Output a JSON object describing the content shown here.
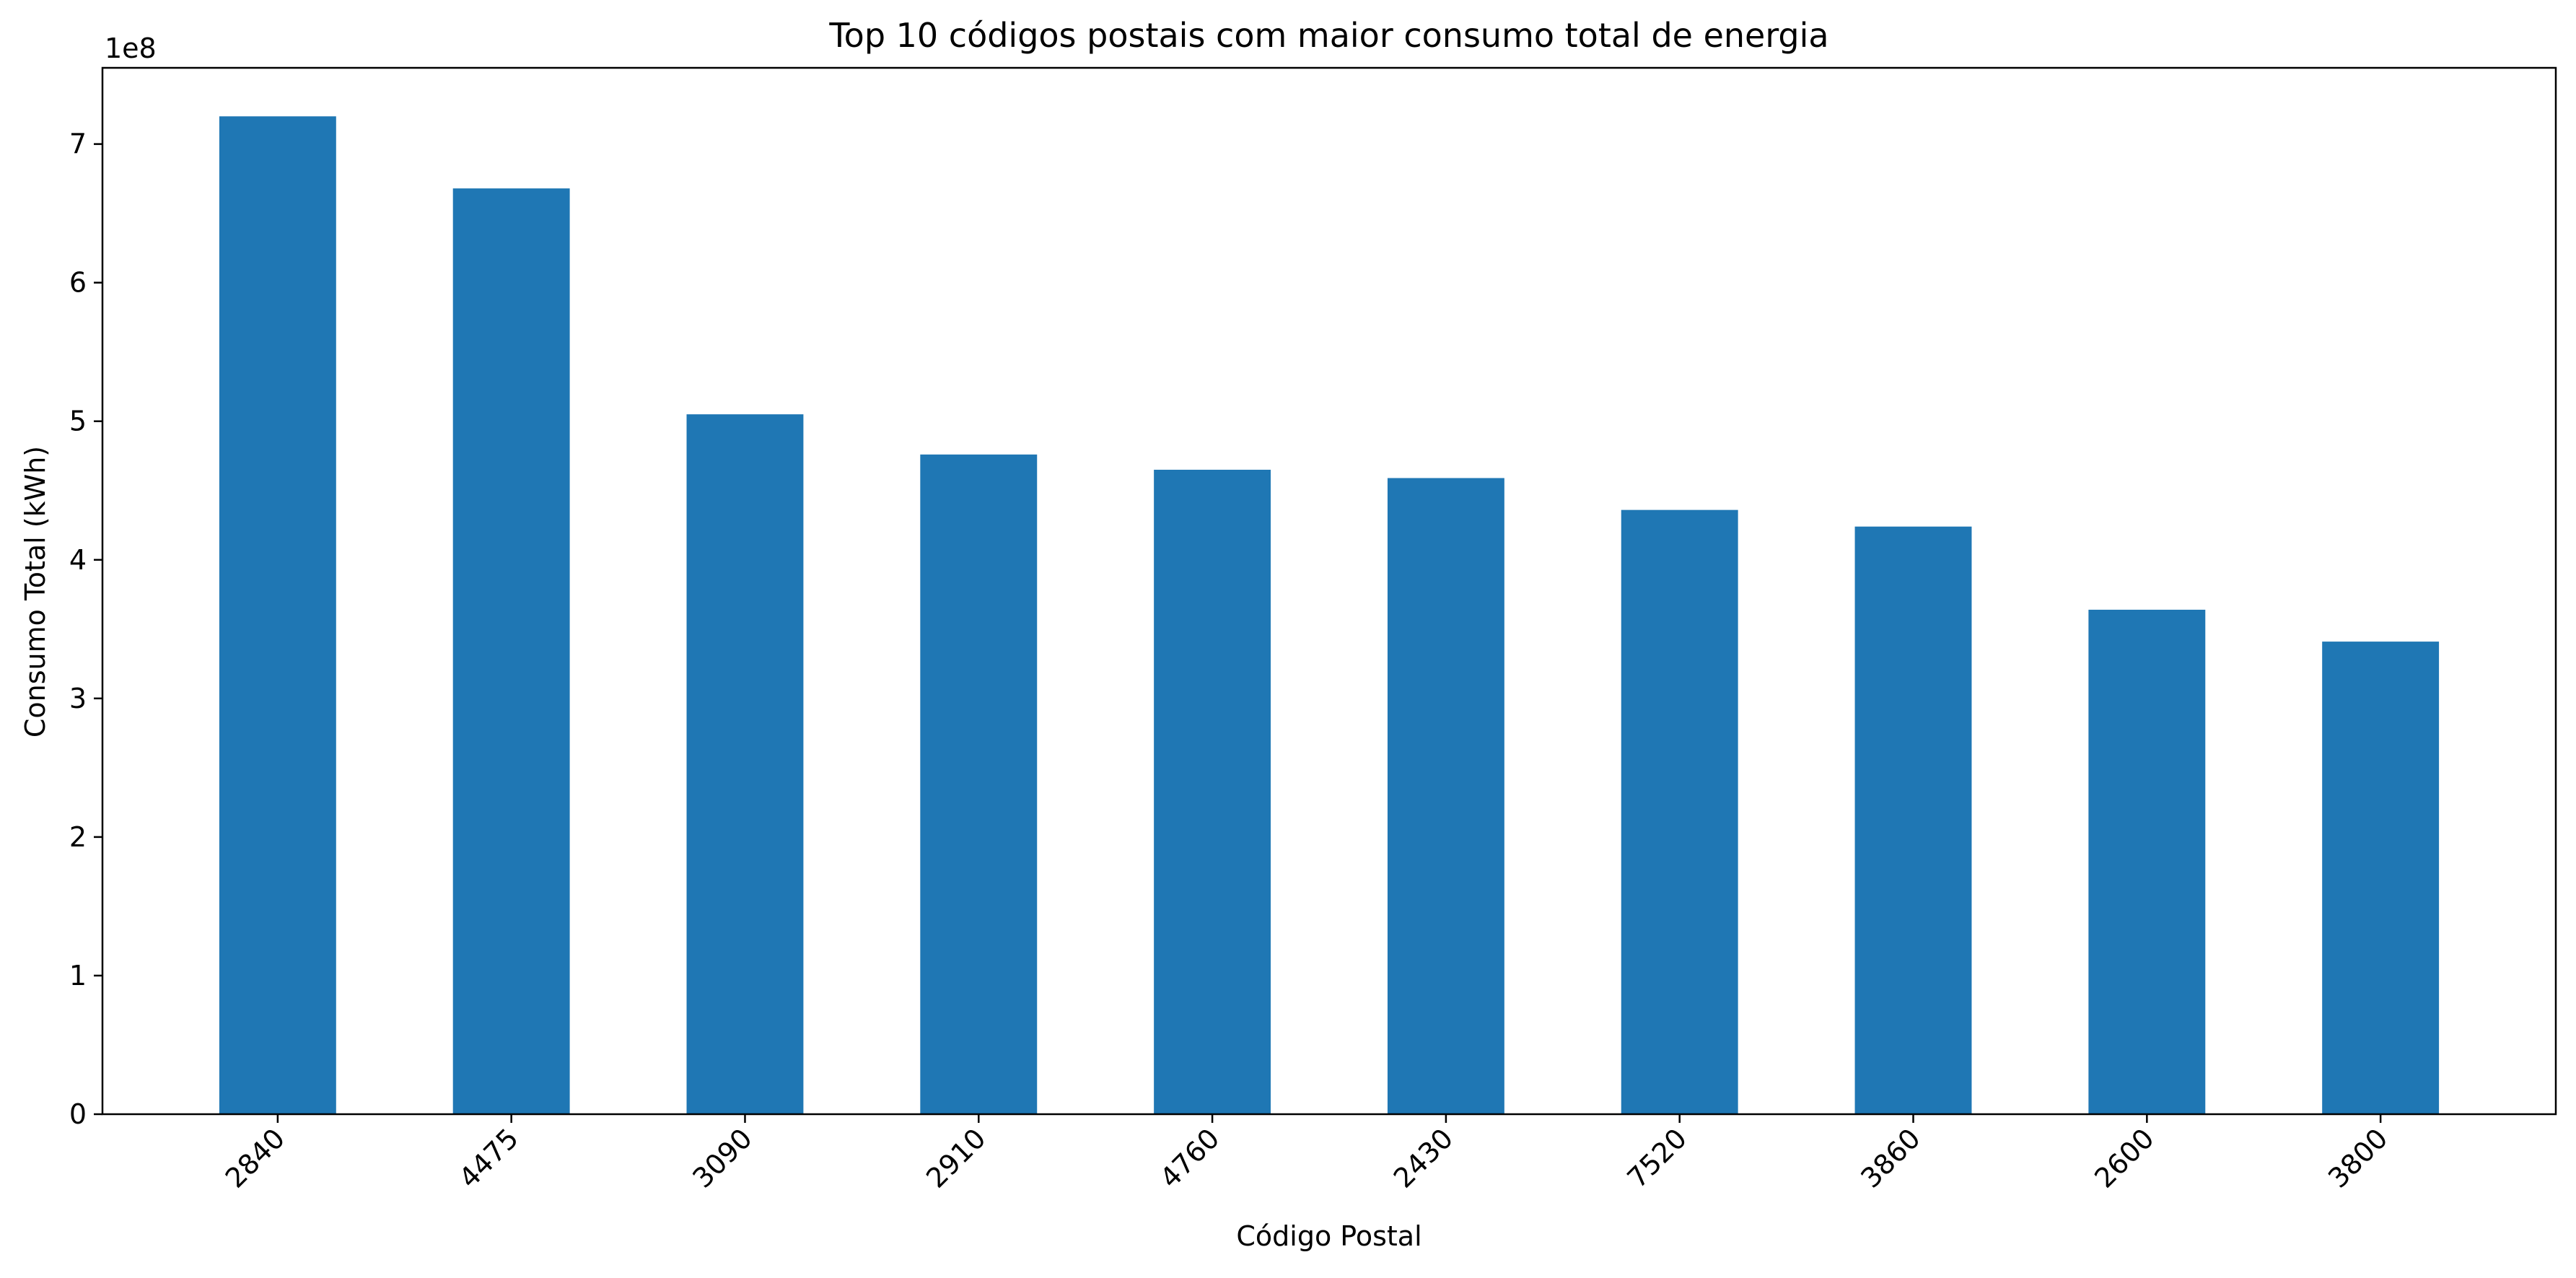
{
  "chart_data": {
    "type": "bar",
    "title": "Top 10 códigos postais com maior consumo total de energia",
    "xlabel": "Código Postal",
    "ylabel": "Consumo Total (kWh)",
    "y_offset_label": "1e8",
    "y_scale": 100000000,
    "ylim": [
      0,
      755000000
    ],
    "yticks": [
      0,
      100000000,
      200000000,
      300000000,
      400000000,
      500000000,
      600000000,
      700000000
    ],
    "ytick_labels": [
      "0",
      "1",
      "2",
      "3",
      "4",
      "5",
      "6",
      "7"
    ],
    "categories": [
      "2840",
      "4475",
      "3090",
      "2910",
      "4760",
      "2430",
      "7520",
      "3860",
      "2600",
      "3800"
    ],
    "values": [
      720000000,
      668000000,
      505000000,
      476000000,
      465000000,
      459000000,
      436000000,
      424000000,
      364000000,
      341000000
    ],
    "bar_color": "#1f77b4",
    "grid": false,
    "x_tick_rotation_deg": 45
  }
}
